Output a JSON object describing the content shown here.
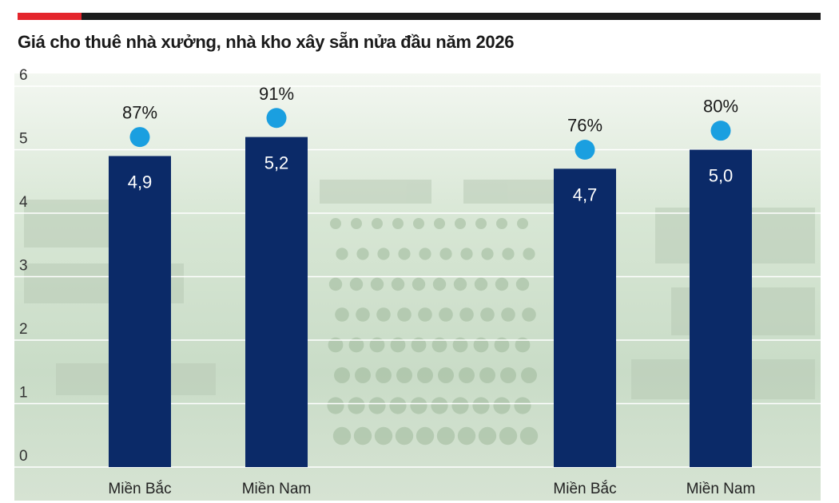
{
  "chart_data": {
    "type": "bar",
    "title": "Giá cho thuê nhà xưởng, nhà kho xây sẵn nửa đầu năm 2026",
    "ylim": [
      0,
      6
    ],
    "yticks": [
      "0",
      "1",
      "2",
      "3",
      "4",
      "5",
      "6"
    ],
    "grid": true,
    "bars": [
      {
        "category": "Miền Bắc",
        "value": 4.9,
        "label": "4,9",
        "rate": 87,
        "rate_label": "87%",
        "group": 1
      },
      {
        "category": "Miền Nam",
        "value": 5.2,
        "label": "5,2",
        "rate": 91,
        "rate_label": "91%",
        "group": 1
      },
      {
        "category": "Miền Bắc",
        "value": 4.7,
        "label": "4,7",
        "rate": 76,
        "rate_label": "76%",
        "group": 2
      },
      {
        "category": "Miền Nam",
        "value": 5.0,
        "label": "5,0",
        "rate": 80,
        "rate_label": "80%",
        "group": 2
      }
    ],
    "colors": {
      "bar": "#0b2a68",
      "dot": "#1a9fe0",
      "accent": "#e4252c"
    }
  }
}
